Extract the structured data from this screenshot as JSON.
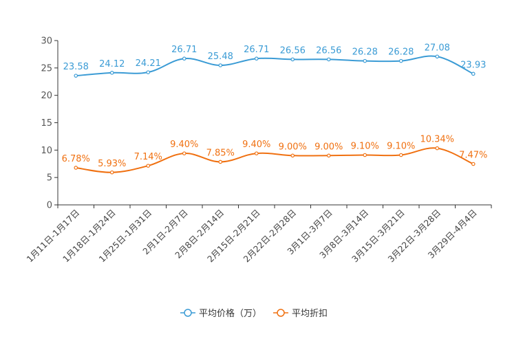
{
  "chart_data": {
    "type": "line",
    "title": "",
    "xlabel": "",
    "ylabel": "",
    "ylim": [
      0,
      30
    ],
    "yticks": [
      0,
      5,
      10,
      15,
      20,
      25,
      30
    ],
    "grid": false,
    "legend_position": "bottom-center",
    "categories": [
      "1月11日-1月17日",
      "1月18日-1月24日",
      "1月25日-1月31日",
      "2月1日-2月7日",
      "2月8日-2月14日",
      "2月15日-2月21日",
      "2月22日-2月28日",
      "3月1日-3月7日",
      "3月8日-3月14日",
      "3月15日-3月21日",
      "3月22日-3月28日",
      "3月29日-4月4日"
    ],
    "series": [
      {
        "name": "平均价格（万）",
        "color": "#3a9bd5",
        "values": [
          23.58,
          24.12,
          24.21,
          26.71,
          25.48,
          26.71,
          26.56,
          26.56,
          26.28,
          26.28,
          27.08,
          23.93
        ],
        "labels": [
          "23.58",
          "24.12",
          "24.21",
          "26.71",
          "25.48",
          "26.71",
          "26.56",
          "26.56",
          "26.28",
          "26.28",
          "27.08",
          "23.93"
        ]
      },
      {
        "name": "平均折扣",
        "color": "#f07010",
        "values": [
          6.78,
          5.93,
          7.14,
          9.4,
          7.85,
          9.4,
          9.0,
          9.0,
          9.1,
          9.1,
          10.34,
          7.47
        ],
        "labels": [
          "6.78%",
          "5.93%",
          "7.14%",
          "9.40%",
          "7.85%",
          "9.40%",
          "9.00%",
          "9.00%",
          "9.10%",
          "9.10%",
          "10.34%",
          "7.47%"
        ]
      }
    ]
  }
}
